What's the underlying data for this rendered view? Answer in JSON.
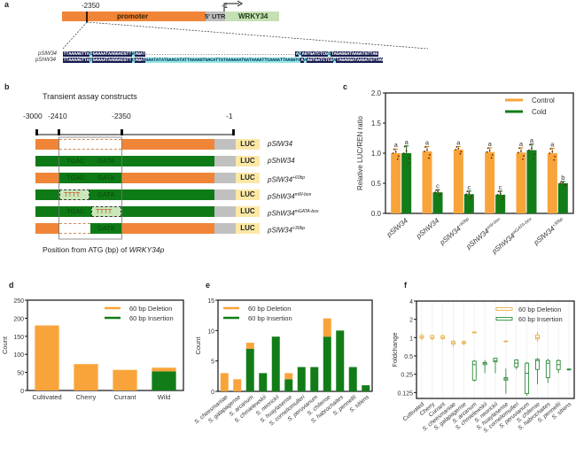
{
  "figure": {
    "panel_labels": [
      "a",
      "b",
      "c",
      "d",
      "e",
      "f"
    ]
  },
  "panel_a": {
    "position_2350": "-2350",
    "position_1": "-1",
    "promoter_label": "promoter",
    "utr_label": "5' UTR",
    "gene_label": "WRKY34",
    "colors": {
      "promoter": "#f08538",
      "utr": "#bdbdbd",
      "gene": "#c5e0b4"
    },
    "alignment": [
      {
        "name": "pSlW34",
        "left": "TTAAAAGTTA",
        "m1": "C",
        "mid1": "GAAAATAAGGACGTT",
        "m2": "A",
        "mid2": "AGAT",
        "insert_dots": "..........................................................",
        "m3": "A",
        "m4": "G",
        "right1": "AGTGATCTCG",
        "m5": "C",
        "right2": "TAGAGGATAAGATGTTAG"
      },
      {
        "name": "pShW34",
        "left": "TTAAAAGTTA",
        "m1": "T",
        "mid1": "GAAAATAAGGACGTT",
        "m2": "C",
        "mid2": "AGAT",
        "insert": "GAATATATGAACATATTAAAAGTGACATTATAAGAAATGATAAAATTCAAAATTAAGGTG",
        "m3": "A",
        "m4": "A",
        "right1": "AGTGATCTCG",
        "m5": "A",
        "right2": "TAGAGGATAAGATGTTAG"
      }
    ]
  },
  "panel_b": {
    "title": "Transient assay constructs",
    "ticks": [
      "-3000",
      "-2410",
      "-2350",
      "-1"
    ],
    "xlabel_prefix": "Position from ATG (bp) of ",
    "xlabel_gene": "WRKY34p",
    "luc_label": "LUC",
    "constructs": [
      {
        "name": "pSlW34",
        "sup": "",
        "base": "orange",
        "segA": "",
        "segB": ""
      },
      {
        "name": "pShW34",
        "sup": "",
        "base": "green",
        "segA": "TGAC",
        "segB": "GATA"
      },
      {
        "name": "pSlW34",
        "sup": "+60bp",
        "base": "orange",
        "segA": "TGAC",
        "segB": "GATA"
      },
      {
        "name": "pShW34",
        "sup": "mW-box",
        "base": "green",
        "segA": "TTTT",
        "segB": "GATA"
      },
      {
        "name": "pShW34",
        "sup": "mGATA-box",
        "base": "green",
        "segA": "TGAC",
        "segB": "TTTT"
      },
      {
        "name": "pSlW34",
        "sup": "+30bp",
        "base": "orange",
        "segA": "",
        "segB": "GATA"
      }
    ],
    "colors": {
      "orange": "#f08538",
      "green": "#0e7a16",
      "grey": "#c0c0c0",
      "luc": "#fbe8a6",
      "mut": "#c9e8b8",
      "mut_text": "#c0502a"
    }
  },
  "chart_data": [
    {
      "panel": "c",
      "type": "bar",
      "title": "",
      "xlabel": "",
      "ylabel": "Relative LUC/REN ratio",
      "ylim": [
        0,
        2.0
      ],
      "yticks": [
        "0.0",
        "0.5",
        "1.0",
        "1.5",
        "2.0"
      ],
      "categories": [
        {
          "name": "pSlW34",
          "sup": ""
        },
        {
          "name": "pShW34",
          "sup": ""
        },
        {
          "name": "pSlW34",
          "sup": "+60bp"
        },
        {
          "name": "pShW34",
          "sup": "mW-box"
        },
        {
          "name": "pShW34",
          "sup": "mGATA-box"
        },
        {
          "name": "pSlW34",
          "sup": "+30bp"
        }
      ],
      "series": [
        {
          "name": "Control",
          "color": "#f9a43a",
          "values": [
            1.0,
            1.03,
            1.06,
            1.02,
            1.01,
            1.0
          ],
          "errors": [
            0.07,
            0.08,
            0.05,
            0.07,
            0.08,
            0.08
          ],
          "letters": [
            "a",
            "a",
            "a",
            "a",
            "a",
            "a"
          ]
        },
        {
          "name": "Cold",
          "color": "#127d18",
          "values": [
            1.0,
            0.35,
            0.32,
            0.31,
            1.05,
            0.5
          ],
          "errors": [
            0.12,
            0.04,
            0.05,
            0.06,
            0.1,
            0.03
          ],
          "letters": [
            "a",
            "c",
            "c",
            "c",
            "a",
            "b"
          ]
        }
      ],
      "legend": "top-right",
      "grid": false
    },
    {
      "panel": "d",
      "type": "bar",
      "stacked": true,
      "title": "",
      "xlabel": "",
      "ylabel": "Count",
      "ylim": [
        0,
        250
      ],
      "yticks": [
        "0",
        "50",
        "100",
        "150",
        "200",
        "250"
      ],
      "categories": [
        "Cultivated",
        "Cherry",
        "Currant",
        "Wild"
      ],
      "series": [
        {
          "name": "60 bp Insertion",
          "color": "#127d18",
          "values": [
            0,
            0,
            0,
            53
          ]
        },
        {
          "name": "60 bp Deletion",
          "color": "#f9a43a",
          "values": [
            180,
            73,
            57,
            10
          ]
        }
      ],
      "legend": "top-right",
      "grid": false
    },
    {
      "panel": "e",
      "type": "bar",
      "stacked": true,
      "title": "",
      "xlabel": "",
      "ylabel": "Count",
      "ylim": [
        0,
        15
      ],
      "yticks": [
        "0",
        "5",
        "10",
        "15"
      ],
      "categories": [
        "S. cheesmaniae",
        "S. galapagense",
        "S. arcanum",
        "S. chmielewskii",
        "S. neorickii",
        "S. huaylasense",
        "S. corneliomulleri",
        "S. peruvianum",
        "S. chilense",
        "S. habrochaites",
        "S. pennellii",
        "S. sitiens"
      ],
      "series": [
        {
          "name": "60 bp Insertion",
          "color": "#127d18",
          "values": [
            0,
            0,
            7,
            3,
            9,
            2,
            4,
            4,
            9,
            10,
            4,
            1
          ]
        },
        {
          "name": "60 bp Deletion",
          "color": "#f9a43a",
          "values": [
            3,
            2,
            1,
            0,
            0,
            1,
            0,
            0,
            3,
            0,
            0,
            0
          ]
        }
      ],
      "legend": "top-left",
      "grid": false
    },
    {
      "panel": "f",
      "type": "box",
      "title": "",
      "xlabel": "",
      "ylabel": "Foldchange",
      "yscale": "log2",
      "ylim": [
        0.1,
        4
      ],
      "yticks": [
        "0.125",
        "0.25",
        "0.5",
        "1",
        "2",
        "4"
      ],
      "categories": [
        "Cultivated",
        "Cherry",
        "Currant",
        "S. cheesmaniae",
        "S. galapagense",
        "S. arcanum",
        "S. chmielewskii",
        "S. neorickii",
        "S. huaylasense",
        "S. corneliomulleri",
        "S. peruvianum",
        "S. chilense",
        "S. habrochaites",
        "S. pennellii",
        "S. sitiens"
      ],
      "series": [
        {
          "name": "60 bp Deletion",
          "color": "#e8b04a",
          "boxes": [
            {
              "cat": 0,
              "min": 0.9,
              "q1": 0.98,
              "med": 1.02,
              "q3": 1.08,
              "max": 1.18
            },
            {
              "cat": 1,
              "min": 0.9,
              "q1": 0.97,
              "med": 1.0,
              "q3": 1.08,
              "max": 1.12
            },
            {
              "cat": 2,
              "min": 0.92,
              "q1": 0.97,
              "med": 1.0,
              "q3": 1.07,
              "max": 1.12
            },
            {
              "cat": 3,
              "min": 0.7,
              "q1": 0.78,
              "med": 0.82,
              "q3": 0.87,
              "max": 0.92
            },
            {
              "cat": 4,
              "min": 0.75,
              "q1": 0.8,
              "med": 0.83,
              "q3": 0.86,
              "max": 0.9
            },
            {
              "cat": 5,
              "min": 1.18,
              "q1": 1.2,
              "med": 1.22,
              "q3": 1.24,
              "max": 1.26
            },
            {
              "cat": 8,
              "min": 0.85,
              "q1": 0.86,
              "med": 0.87,
              "q3": 0.88,
              "max": 0.89
            },
            {
              "cat": 11,
              "min": 0.85,
              "q1": 0.95,
              "med": 1.0,
              "q3": 1.1,
              "max": 1.25
            }
          ]
        },
        {
          "name": "60 bp Insertion",
          "color": "#2e8b3a",
          "boxes": [
            {
              "cat": 5,
              "min": 0.19,
              "q1": 0.2,
              "med": 0.36,
              "q3": 0.41,
              "max": 0.43
            },
            {
              "cat": 6,
              "min": 0.26,
              "q1": 0.36,
              "med": 0.38,
              "q3": 0.39,
              "max": 0.43
            },
            {
              "cat": 7,
              "min": 0.26,
              "q1": 0.4,
              "med": 0.42,
              "q3": 0.46,
              "max": 0.47
            },
            {
              "cat": 8,
              "min": 0.12,
              "q1": 0.2,
              "med": 0.21,
              "q3": 0.22,
              "max": 0.31
            },
            {
              "cat": 9,
              "min": 0.3,
              "q1": 0.33,
              "med": 0.38,
              "q3": 0.43,
              "max": 0.44
            },
            {
              "cat": 10,
              "min": 0.11,
              "q1": 0.12,
              "med": 0.26,
              "q3": 0.38,
              "max": 0.4
            },
            {
              "cat": 11,
              "min": 0.17,
              "q1": 0.3,
              "med": 0.42,
              "q3": 0.44,
              "max": 0.46
            },
            {
              "cat": 12,
              "min": 0.18,
              "q1": 0.22,
              "med": 0.38,
              "q3": 0.42,
              "max": 0.45
            },
            {
              "cat": 13,
              "min": 0.26,
              "q1": 0.3,
              "med": 0.36,
              "q3": 0.42,
              "max": 0.44
            },
            {
              "cat": 14,
              "min": 0.29,
              "q1": 0.295,
              "med": 0.3,
              "q3": 0.305,
              "max": 0.31
            }
          ]
        }
      ],
      "legend": "top-right",
      "grid": true
    }
  ]
}
